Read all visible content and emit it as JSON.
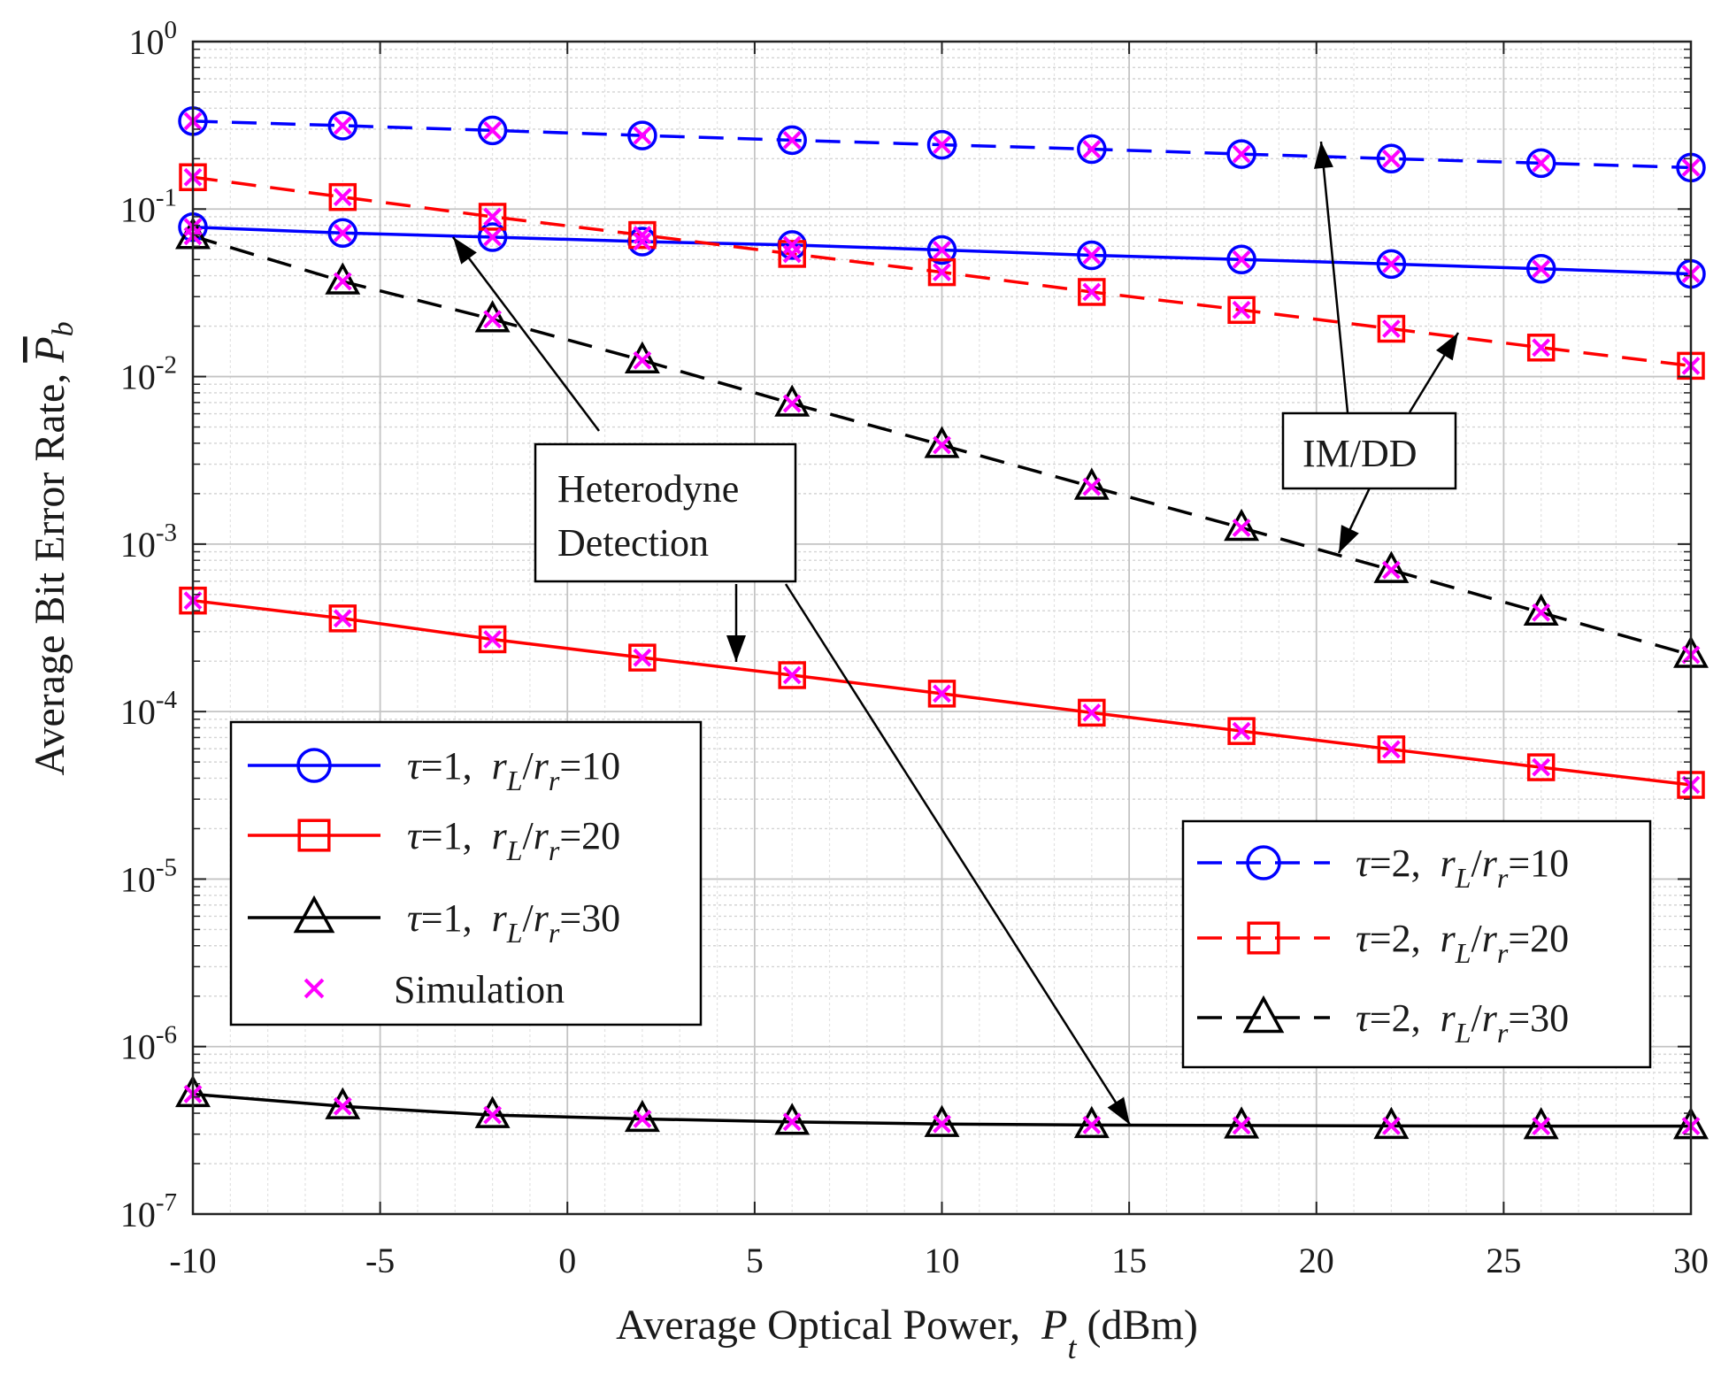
{
  "chart_data": {
    "type": "line",
    "xlabel": "Average Optical Power,",
    "xlabel_symbol": "P",
    "xlabel_sub": "t",
    "xlabel_unit": "(dBm)",
    "ylabel": "Average Bit Error Rate,",
    "ylabel_symbol": "P",
    "ylabel_sub": "b",
    "xlim": [
      -10,
      30
    ],
    "ylim_log10": [
      -7,
      0
    ],
    "yscale": "log",
    "grid": true,
    "minor_grid": true,
    "xticks": [
      {
        "value": -10,
        "label": "-10"
      },
      {
        "value": -5,
        "label": "-5"
      },
      {
        "value": 0,
        "label": "0"
      },
      {
        "value": 5,
        "label": "5"
      },
      {
        "value": 10,
        "label": "10"
      },
      {
        "value": 15,
        "label": "15"
      },
      {
        "value": 20,
        "label": "20"
      },
      {
        "value": 25,
        "label": "25"
      },
      {
        "value": 30,
        "label": "30"
      }
    ],
    "yticks": [
      {
        "exp": 0,
        "base": "10",
        "power": "0"
      },
      {
        "exp": -1,
        "base": "10",
        "power": "-1"
      },
      {
        "exp": -2,
        "base": "10",
        "power": "-2"
      },
      {
        "exp": -3,
        "base": "10",
        "power": "-3"
      },
      {
        "exp": -4,
        "base": "10",
        "power": "-4"
      },
      {
        "exp": -5,
        "base": "10",
        "power": "-5"
      },
      {
        "exp": -6,
        "base": "10",
        "power": "-6"
      },
      {
        "exp": -7,
        "base": "10",
        "power": "-7"
      }
    ],
    "x": [
      -10,
      -6,
      -2,
      2,
      6,
      10,
      14,
      18,
      22,
      26,
      30
    ],
    "series": [
      {
        "id": "t1-r10",
        "tau": "1",
        "ratio": "10",
        "color": "#0000ff",
        "dash": "solid",
        "marker": "circle",
        "values": [
          0.078,
          0.072,
          0.068,
          0.064,
          0.061,
          0.057,
          0.053,
          0.05,
          0.047,
          0.044,
          0.041
        ]
      },
      {
        "id": "t1-r20",
        "tau": "1",
        "ratio": "20",
        "color": "#ff0000",
        "dash": "solid",
        "marker": "square",
        "values": [
          0.00046,
          0.00036,
          0.00027,
          0.00021,
          0.000165,
          0.000128,
          9.85e-05,
          7.65e-05,
          5.95e-05,
          4.65e-05,
          3.65e-05
        ]
      },
      {
        "id": "t1-r30",
        "tau": "1",
        "ratio": "30",
        "color": "#000000",
        "dash": "solid",
        "marker": "triangle",
        "values": [
          5.2e-07,
          4.4e-07,
          3.9e-07,
          3.7e-07,
          3.55e-07,
          3.45e-07,
          3.4e-07,
          3.38e-07,
          3.36e-07,
          3.35e-07,
          3.35e-07
        ]
      },
      {
        "id": "t2-r10",
        "tau": "2",
        "ratio": "10",
        "color": "#0000ff",
        "dash": "dashed",
        "marker": "circle",
        "values": [
          0.335,
          0.315,
          0.295,
          0.275,
          0.258,
          0.242,
          0.228,
          0.213,
          0.2,
          0.188,
          0.177
        ]
      },
      {
        "id": "t2-r20",
        "tau": "2",
        "ratio": "20",
        "color": "#ff0000",
        "dash": "dashed",
        "marker": "square",
        "values": [
          0.155,
          0.118,
          0.09,
          0.07,
          0.054,
          0.042,
          0.032,
          0.025,
          0.0193,
          0.0149,
          0.0116
        ]
      },
      {
        "id": "t2-r30",
        "tau": "2",
        "ratio": "30",
        "color": "#000000",
        "dash": "dashed",
        "marker": "triangle",
        "values": [
          0.069,
          0.037,
          0.022,
          0.0125,
          0.0069,
          0.0039,
          0.0022,
          0.00125,
          0.0007,
          0.00039,
          0.000218
        ]
      }
    ],
    "simulation": {
      "label": "Simulation",
      "color": "#ff00ff",
      "marker": "x"
    },
    "legend_left": {
      "placement": "lower-left",
      "series": [
        "t1-r10",
        "t1-r20",
        "t1-r30"
      ],
      "show_simulation": true
    },
    "legend_right": {
      "placement": "lower-right",
      "series": [
        "t2-r10",
        "t2-r20",
        "t2-r30"
      ]
    },
    "legend_label_parts": {
      "tau_symbol": "τ",
      "rl": "r",
      "rl_sub": "L",
      "rr": "r",
      "rr_sub": "r"
    },
    "annotations": [
      {
        "id": "het",
        "lines": [
          "Heterodyne",
          "Detection"
        ]
      },
      {
        "id": "imdd",
        "lines": [
          "IM/DD"
        ]
      }
    ]
  }
}
